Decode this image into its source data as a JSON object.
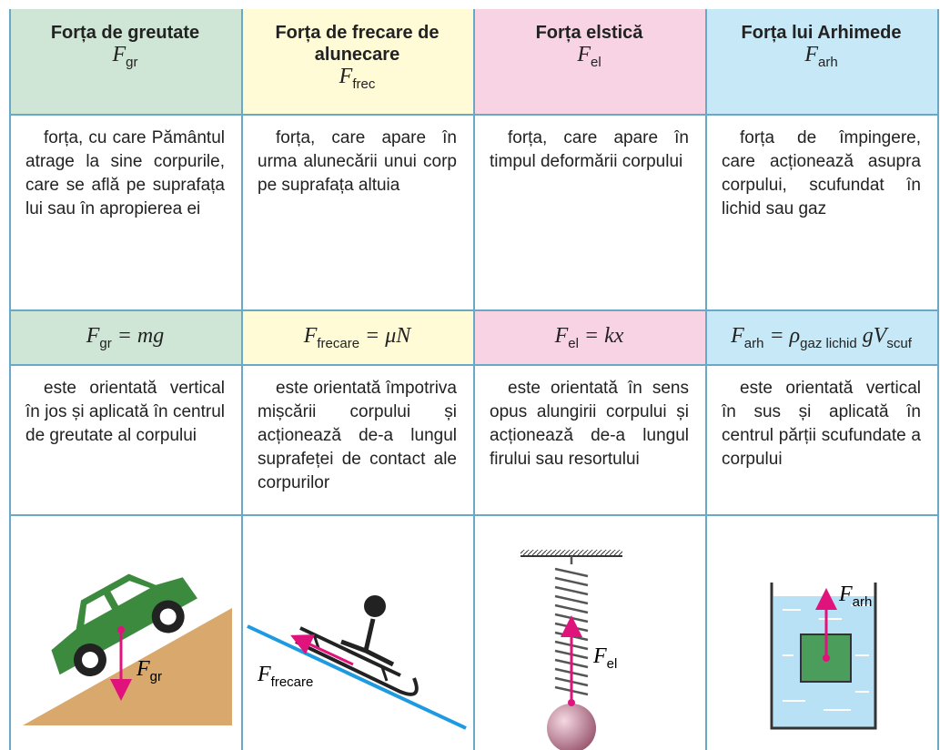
{
  "columns": [
    {
      "title": "Forța de greutate",
      "symbol": {
        "t": "F",
        "sub": "gr"
      },
      "description": "forța, cu care Pământul atrage la sine corpurile, care se află pe suprafața lui sau în apropierea ei",
      "formula": [
        {
          "t": "F",
          "sub": "gr"
        },
        {
          "t": "= mg"
        }
      ],
      "orientation": "este orientată vertical în jos și aplicată în centrul de greutate al corpului",
      "image_label": {
        "t": "F",
        "sub": "gr"
      }
    },
    {
      "title": "Forța de frecare de alunecare",
      "symbol": {
        "t": "F",
        "sub": "frec"
      },
      "description": "forța, care apare în urma alunecării unui corp pe suprafața altuia",
      "formula": [
        {
          "t": "F",
          "sub": "frecare"
        },
        {
          "t": "= μN"
        }
      ],
      "orientation": "este orientată împotriva mișcării corpului și acționează de-a lungul suprafeței de contact ale corpurilor",
      "image_label": {
        "t": "F",
        "sub": "frecare"
      }
    },
    {
      "title": "Forța elstică",
      "symbol": {
        "t": "F",
        "sub": "el"
      },
      "description": "forța, care apare în timpul deformării corpului",
      "formula": [
        {
          "t": "F",
          "sub": "el"
        },
        {
          "t": "= kx"
        }
      ],
      "orientation": "este orientată în sens opus alungirii corpului și acționează de-a lungul firului sau resortului",
      "image_label": {
        "t": "F",
        "sub": "el"
      }
    },
    {
      "title": "Forța lui Arhimede",
      "symbol": {
        "t": "F",
        "sub": "arh"
      },
      "description": "forța de împingere, care acționează asupra corpului, scufundat în lichid sau gaz",
      "formula": [
        {
          "t": "F",
          "sub": "arh"
        },
        {
          "t": "= ρ",
          "sub": "gaz lichid"
        },
        {
          "t": "gV",
          "sub": "scuf"
        }
      ],
      "orientation": "este orientată vertical în sus și aplicată în centrul părții scufundate a corpului",
      "image_label": {
        "t": "F",
        "sub": "arh"
      }
    }
  ]
}
